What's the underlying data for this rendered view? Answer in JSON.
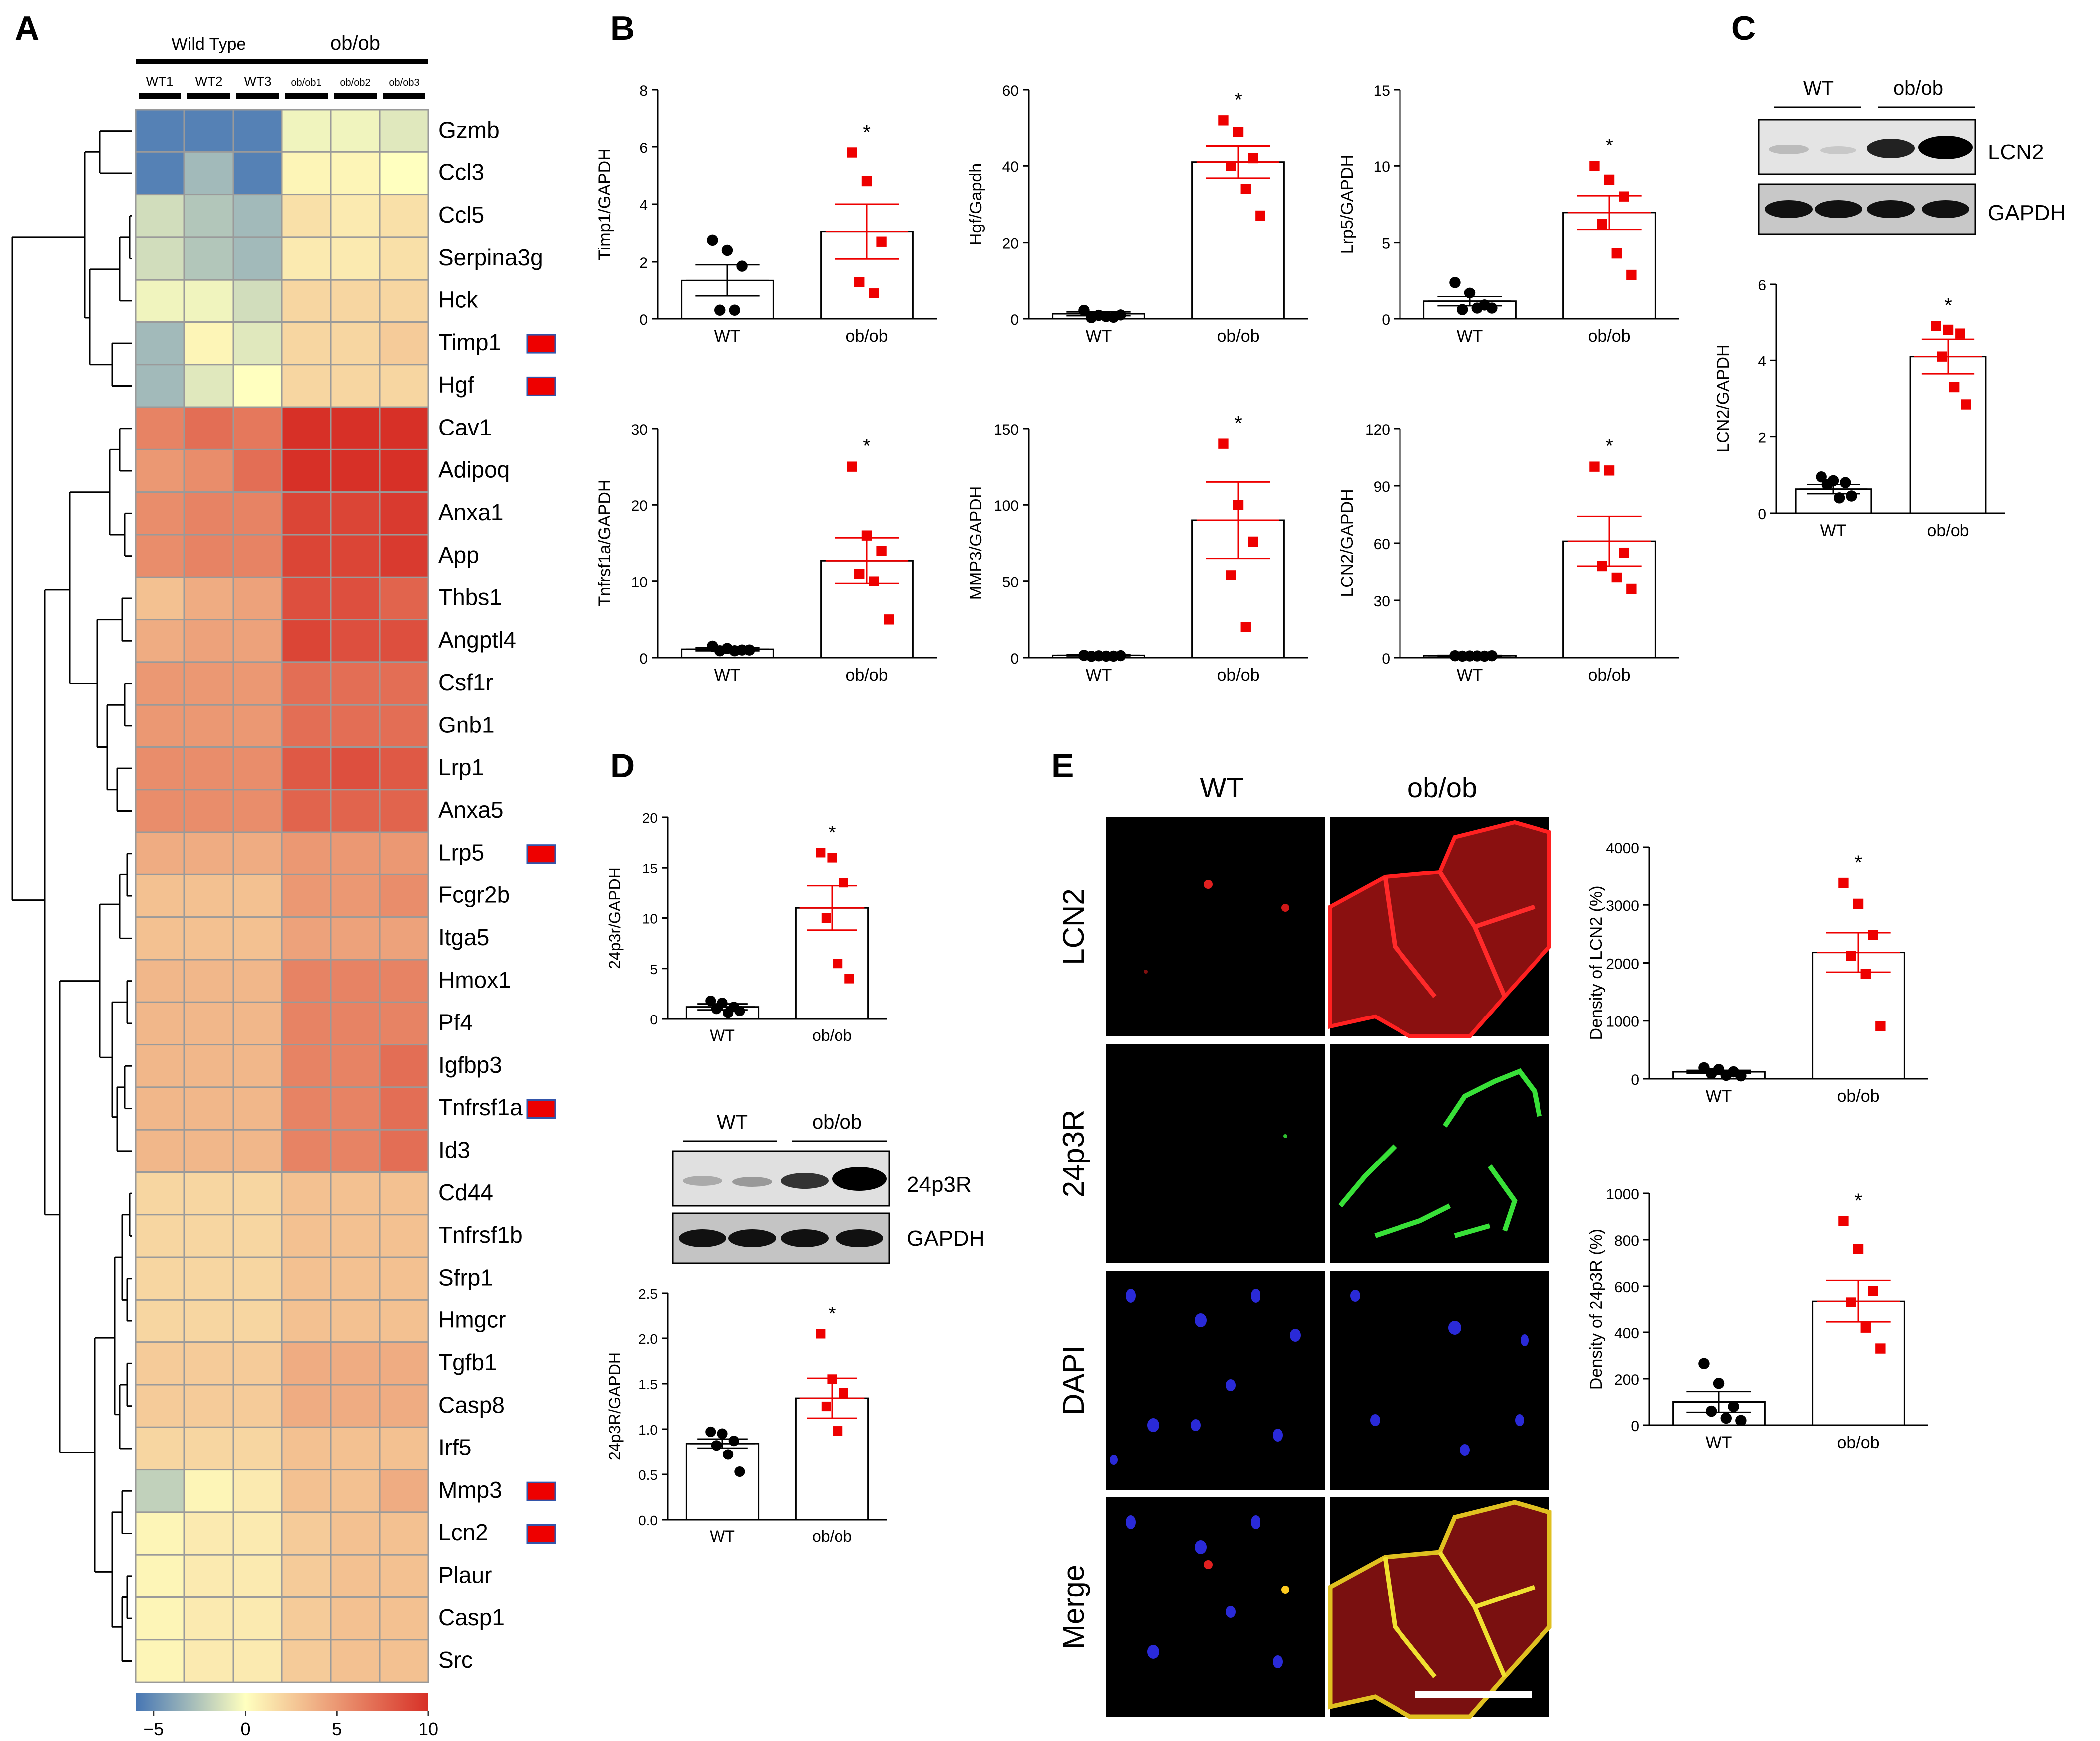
{
  "panel_labels": {
    "A": "A",
    "B": "B",
    "C": "C",
    "D": "D",
    "E": "E"
  },
  "heatmap": {
    "group_headers": [
      "Wild Type",
      "ob/ob"
    ],
    "samples": [
      "WT1",
      "WT2",
      "WT3",
      "ob/ob1",
      "ob/ob2",
      "ob/ob3"
    ],
    "genes": [
      "Gzmb",
      "Ccl3",
      "Ccl5",
      "Serpina3g",
      "Hck",
      "Timp1",
      "Hgf",
      "Cav1",
      "Adipoq",
      "Anxa1",
      "App",
      "Thbs1",
      "Angptl4",
      "Csf1r",
      "Gnb1",
      "Lrp1",
      "Anxa5",
      "Lrp5",
      "Fcgr2b",
      "Itga5",
      "Hmox1",
      "Pf4",
      "Igfbp3",
      "Tnfrsf1a",
      "Id3",
      "Cd44",
      "Tnfrsf1b",
      "Sfrp1",
      "Hmgcr",
      "Tgfb1",
      "Casp8",
      "Irf5",
      "Mmp3",
      "Lcn2",
      "Plaur",
      "Casp1",
      "Src"
    ],
    "values": [
      [
        -5.5,
        -5.5,
        -5.5,
        -0.5,
        -0.5,
        -1
      ],
      [
        -5.5,
        -3,
        -5.5,
        0.5,
        0.5,
        0
      ],
      [
        -1.5,
        -2.5,
        -3,
        1.5,
        1,
        1.5
      ],
      [
        -1.5,
        -2.5,
        -3,
        1,
        1,
        1.5
      ],
      [
        -0.5,
        -0.5,
        -1.5,
        2,
        2,
        2
      ],
      [
        -3,
        0.5,
        -1,
        2,
        2,
        2.5
      ],
      [
        -3,
        -1,
        0,
        2,
        2,
        2
      ],
      [
        6,
        7,
        6.5,
        10,
        10,
        10
      ],
      [
        5,
        5.5,
        7,
        10,
        10,
        10
      ],
      [
        5.5,
        6,
        6,
        9,
        9,
        9.5
      ],
      [
        5.5,
        6,
        6,
        9,
        9,
        9.5
      ],
      [
        3,
        4,
        4.5,
        8.5,
        8.5,
        7.5
      ],
      [
        4,
        4.5,
        4.5,
        9,
        8.5,
        8.5
      ],
      [
        5,
        5,
        5,
        7,
        7,
        7
      ],
      [
        5,
        5,
        5,
        7,
        7,
        7
      ],
      [
        5.5,
        5.5,
        5.5,
        8,
        8.5,
        8
      ],
      [
        5.5,
        5.5,
        5.5,
        7.5,
        7.5,
        7.5
      ],
      [
        4,
        4,
        4,
        5,
        5,
        5
      ],
      [
        3,
        3,
        3,
        5,
        5,
        5.5
      ],
      [
        3,
        3,
        3,
        4.5,
        4.5,
        4.5
      ],
      [
        3.5,
        3.5,
        3.5,
        6,
        6,
        6
      ],
      [
        3.5,
        3.5,
        3.5,
        6,
        6,
        6
      ],
      [
        3.5,
        3.5,
        3.5,
        6,
        6,
        7
      ],
      [
        3.5,
        3.5,
        3.5,
        6,
        6,
        7
      ],
      [
        3.5,
        3.5,
        3.5,
        6,
        6,
        7
      ],
      [
        2,
        2,
        2,
        3,
        3,
        3
      ],
      [
        2,
        2,
        2,
        3,
        3,
        3
      ],
      [
        2,
        2,
        2,
        3,
        3,
        3
      ],
      [
        2,
        2,
        2,
        3,
        3,
        3
      ],
      [
        2.5,
        2.5,
        2.5,
        4,
        4,
        4
      ],
      [
        2.5,
        2.5,
        2.5,
        4,
        4,
        4
      ],
      [
        2,
        2,
        2,
        3,
        3,
        3
      ],
      [
        -2,
        0.5,
        1,
        3,
        3,
        4
      ],
      [
        0.5,
        1,
        1,
        2.5,
        3,
        3
      ],
      [
        0.5,
        1,
        1,
        2.5,
        3,
        3
      ],
      [
        0.5,
        1,
        1,
        2.5,
        3,
        3
      ],
      [
        0.5,
        1,
        1,
        2.5,
        3,
        3
      ]
    ],
    "marked_genes": [
      "Timp1",
      "Hgf",
      "Lrp5",
      "Tnfrsf1a",
      "Mmp3",
      "Lcn2"
    ],
    "colorbar": {
      "ticks": [
        "−5",
        "0",
        "5",
        "10"
      ],
      "range": [
        -6,
        10
      ]
    },
    "colors": {
      "low": "#4575b4",
      "mid": "#ffffbf",
      "high": "#d73027",
      "marker_fill": "#ee0000",
      "marker_border": "#3355aa"
    }
  },
  "western_blots": {
    "C": {
      "groups": [
        "WT",
        "ob/ob"
      ],
      "bands": [
        "LCN2",
        "GAPDH"
      ]
    },
    "D": {
      "groups": [
        "WT",
        "ob/ob"
      ],
      "bands": [
        "24p3R",
        "GAPDH"
      ]
    }
  },
  "microscopy": {
    "columns": [
      "WT",
      "ob/ob"
    ],
    "rows": [
      "LCN2",
      "24p3R",
      "DAPI",
      "Merge"
    ]
  },
  "chart_data": [
    {
      "id": "B1",
      "type": "bar",
      "categories": [
        "WT",
        "ob/ob"
      ],
      "values": [
        1.35,
        3.05
      ],
      "errors": [
        0.55,
        0.95
      ],
      "ylabel": "Timp1/GAPDH",
      "ylim": [
        0,
        8
      ],
      "yticks": [
        "0",
        "2",
        "4",
        "6",
        "8"
      ],
      "points": [
        [
          2.75,
          2.4,
          1.85,
          0.3,
          0.3
        ],
        [
          5.8,
          4.8,
          2.7,
          1.3,
          0.9
        ]
      ],
      "significance": [
        "",
        "*"
      ]
    },
    {
      "id": "B2",
      "type": "bar",
      "categories": [
        "WT",
        "ob/ob"
      ],
      "values": [
        1.3,
        41.0
      ],
      "errors": [
        0.5,
        4.2
      ],
      "ylabel": "Hgf/Gapdh",
      "ylim": [
        0,
        60
      ],
      "yticks": [
        "0",
        "20",
        "40",
        "60"
      ],
      "points": [
        [
          2.2,
          0.9,
          0.4,
          0.3,
          0.6,
          1.0
        ],
        [
          52,
          49,
          42,
          40,
          34,
          27
        ]
      ],
      "significance": [
        "",
        "*"
      ]
    },
    {
      "id": "B3",
      "type": "bar",
      "categories": [
        "WT",
        "ob/ob"
      ],
      "values": [
        1.15,
        6.95
      ],
      "errors": [
        0.3,
        1.1
      ],
      "ylabel": "Lrp5/GAPDH",
      "ylim": [
        0,
        15
      ],
      "yticks": [
        "0",
        "5",
        "10",
        "15"
      ],
      "points": [
        [
          2.4,
          1.7,
          0.9,
          0.6,
          0.7,
          0.7
        ],
        [
          10.0,
          9.1,
          8.0,
          6.2,
          4.3,
          2.9
        ]
      ],
      "significance": [
        "",
        "*"
      ]
    },
    {
      "id": "B4",
      "type": "bar",
      "categories": [
        "WT",
        "ob/ob"
      ],
      "values": [
        1.1,
        12.7
      ],
      "errors": [
        0.2,
        3.0
      ],
      "ylabel": "Tnfrsf1a/GAPDH",
      "ylim": [
        0,
        30
      ],
      "yticks": [
        "0",
        "10",
        "20",
        "30"
      ],
      "points": [
        [
          1.5,
          1.2,
          1.0,
          0.9,
          0.9,
          1.0
        ],
        [
          25.0,
          16.0,
          14.0,
          11.0,
          10.0,
          5.0
        ]
      ],
      "significance": [
        "",
        "*"
      ]
    },
    {
      "id": "B5",
      "type": "bar",
      "categories": [
        "WT",
        "ob/ob"
      ],
      "values": [
        1.5,
        90.0
      ],
      "errors": [
        0.3,
        25.0
      ],
      "ylabel": "MMP3/GAPDH",
      "ylim": [
        0,
        150
      ],
      "yticks": [
        "0",
        "50",
        "100",
        "150"
      ],
      "points": [
        [
          1.5,
          1.2,
          1.0,
          0.9,
          1.0,
          1.3
        ],
        [
          140,
          100,
          76,
          54,
          20
        ]
      ],
      "significance": [
        "",
        "*"
      ]
    },
    {
      "id": "B6",
      "type": "bar",
      "categories": [
        "WT",
        "ob/ob"
      ],
      "values": [
        1.0,
        61.0
      ],
      "errors": [
        0.2,
        13.0
      ],
      "ylabel": "LCN2/GAPDH",
      "ylim": [
        0,
        120
      ],
      "yticks": [
        "0",
        "30",
        "60",
        "90",
        "120"
      ],
      "points": [
        [
          1.0,
          0.9,
          0.8,
          0.8,
          0.9,
          1.0
        ],
        [
          100,
          98,
          55,
          48,
          42,
          36
        ]
      ],
      "significance": [
        "",
        "*"
      ]
    },
    {
      "id": "C",
      "type": "bar",
      "categories": [
        "WT",
        "ob/ob"
      ],
      "values": [
        0.63,
        4.1
      ],
      "errors": [
        0.12,
        0.45
      ],
      "ylabel": "LCN2/GAPDH",
      "ylim": [
        0,
        6
      ],
      "yticks": [
        "0",
        "2",
        "4",
        "6"
      ],
      "points": [
        [
          0.95,
          0.85,
          0.8,
          0.75,
          0.4,
          0.45
        ],
        [
          4.9,
          4.8,
          4.7,
          4.1,
          3.3,
          2.85
        ]
      ],
      "significance": [
        "",
        "*"
      ]
    },
    {
      "id": "D1",
      "type": "bar",
      "categories": [
        "WT",
        "ob/ob"
      ],
      "values": [
        1.2,
        11.0
      ],
      "errors": [
        0.3,
        2.2
      ],
      "ylabel": "24p3r/GAPDH",
      "ylim": [
        0,
        20
      ],
      "yticks": [
        "0",
        "5",
        "10",
        "15",
        "20"
      ],
      "points": [
        [
          1.8,
          1.6,
          1.2,
          1.0,
          0.6,
          0.8
        ],
        [
          16.5,
          16.0,
          13.5,
          10.0,
          5.5,
          4.0
        ]
      ],
      "significance": [
        "",
        "*"
      ]
    },
    {
      "id": "D2",
      "type": "bar",
      "categories": [
        "WT",
        "ob/ob"
      ],
      "values": [
        0.84,
        1.34
      ],
      "errors": [
        0.05,
        0.22
      ],
      "ylabel": "24p3R/GAPDH",
      "ylim": [
        0,
        2.5
      ],
      "yticks": [
        "0.0",
        "0.5",
        "1.0",
        "1.5",
        "2.0",
        "2.5"
      ],
      "points": [
        [
          0.97,
          0.95,
          0.87,
          0.82,
          0.72,
          0.53
        ],
        [
          2.05,
          1.55,
          1.4,
          1.25,
          0.98
        ]
      ],
      "significance": [
        "",
        "*"
      ]
    },
    {
      "id": "E1",
      "type": "bar",
      "categories": [
        "WT",
        "ob/ob"
      ],
      "values": [
        120,
        2180
      ],
      "errors": [
        25,
        340
      ],
      "ylabel": "Density of LCN2 (%)",
      "ylim": [
        0,
        4000
      ],
      "yticks": [
        "0",
        "1000",
        "2000",
        "3000",
        "4000"
      ],
      "points": [
        [
          190,
          160,
          120,
          90,
          60,
          50
        ],
        [
          3380,
          3020,
          2480,
          2120,
          1810,
          910
        ]
      ],
      "significance": [
        "",
        "*"
      ]
    },
    {
      "id": "E2",
      "type": "bar",
      "categories": [
        "WT",
        "ob/ob"
      ],
      "values": [
        100,
        535
      ],
      "errors": [
        45,
        90
      ],
      "ylabel": "Density of 24p3R (%)",
      "ylim": [
        0,
        1000
      ],
      "yticks": [
        "0",
        "200",
        "400",
        "600",
        "800",
        "1000"
      ],
      "points": [
        [
          265,
          180,
          80,
          60,
          30,
          20
        ],
        [
          880,
          760,
          580,
          530,
          420,
          330
        ]
      ],
      "significance": [
        "",
        "*"
      ]
    }
  ]
}
